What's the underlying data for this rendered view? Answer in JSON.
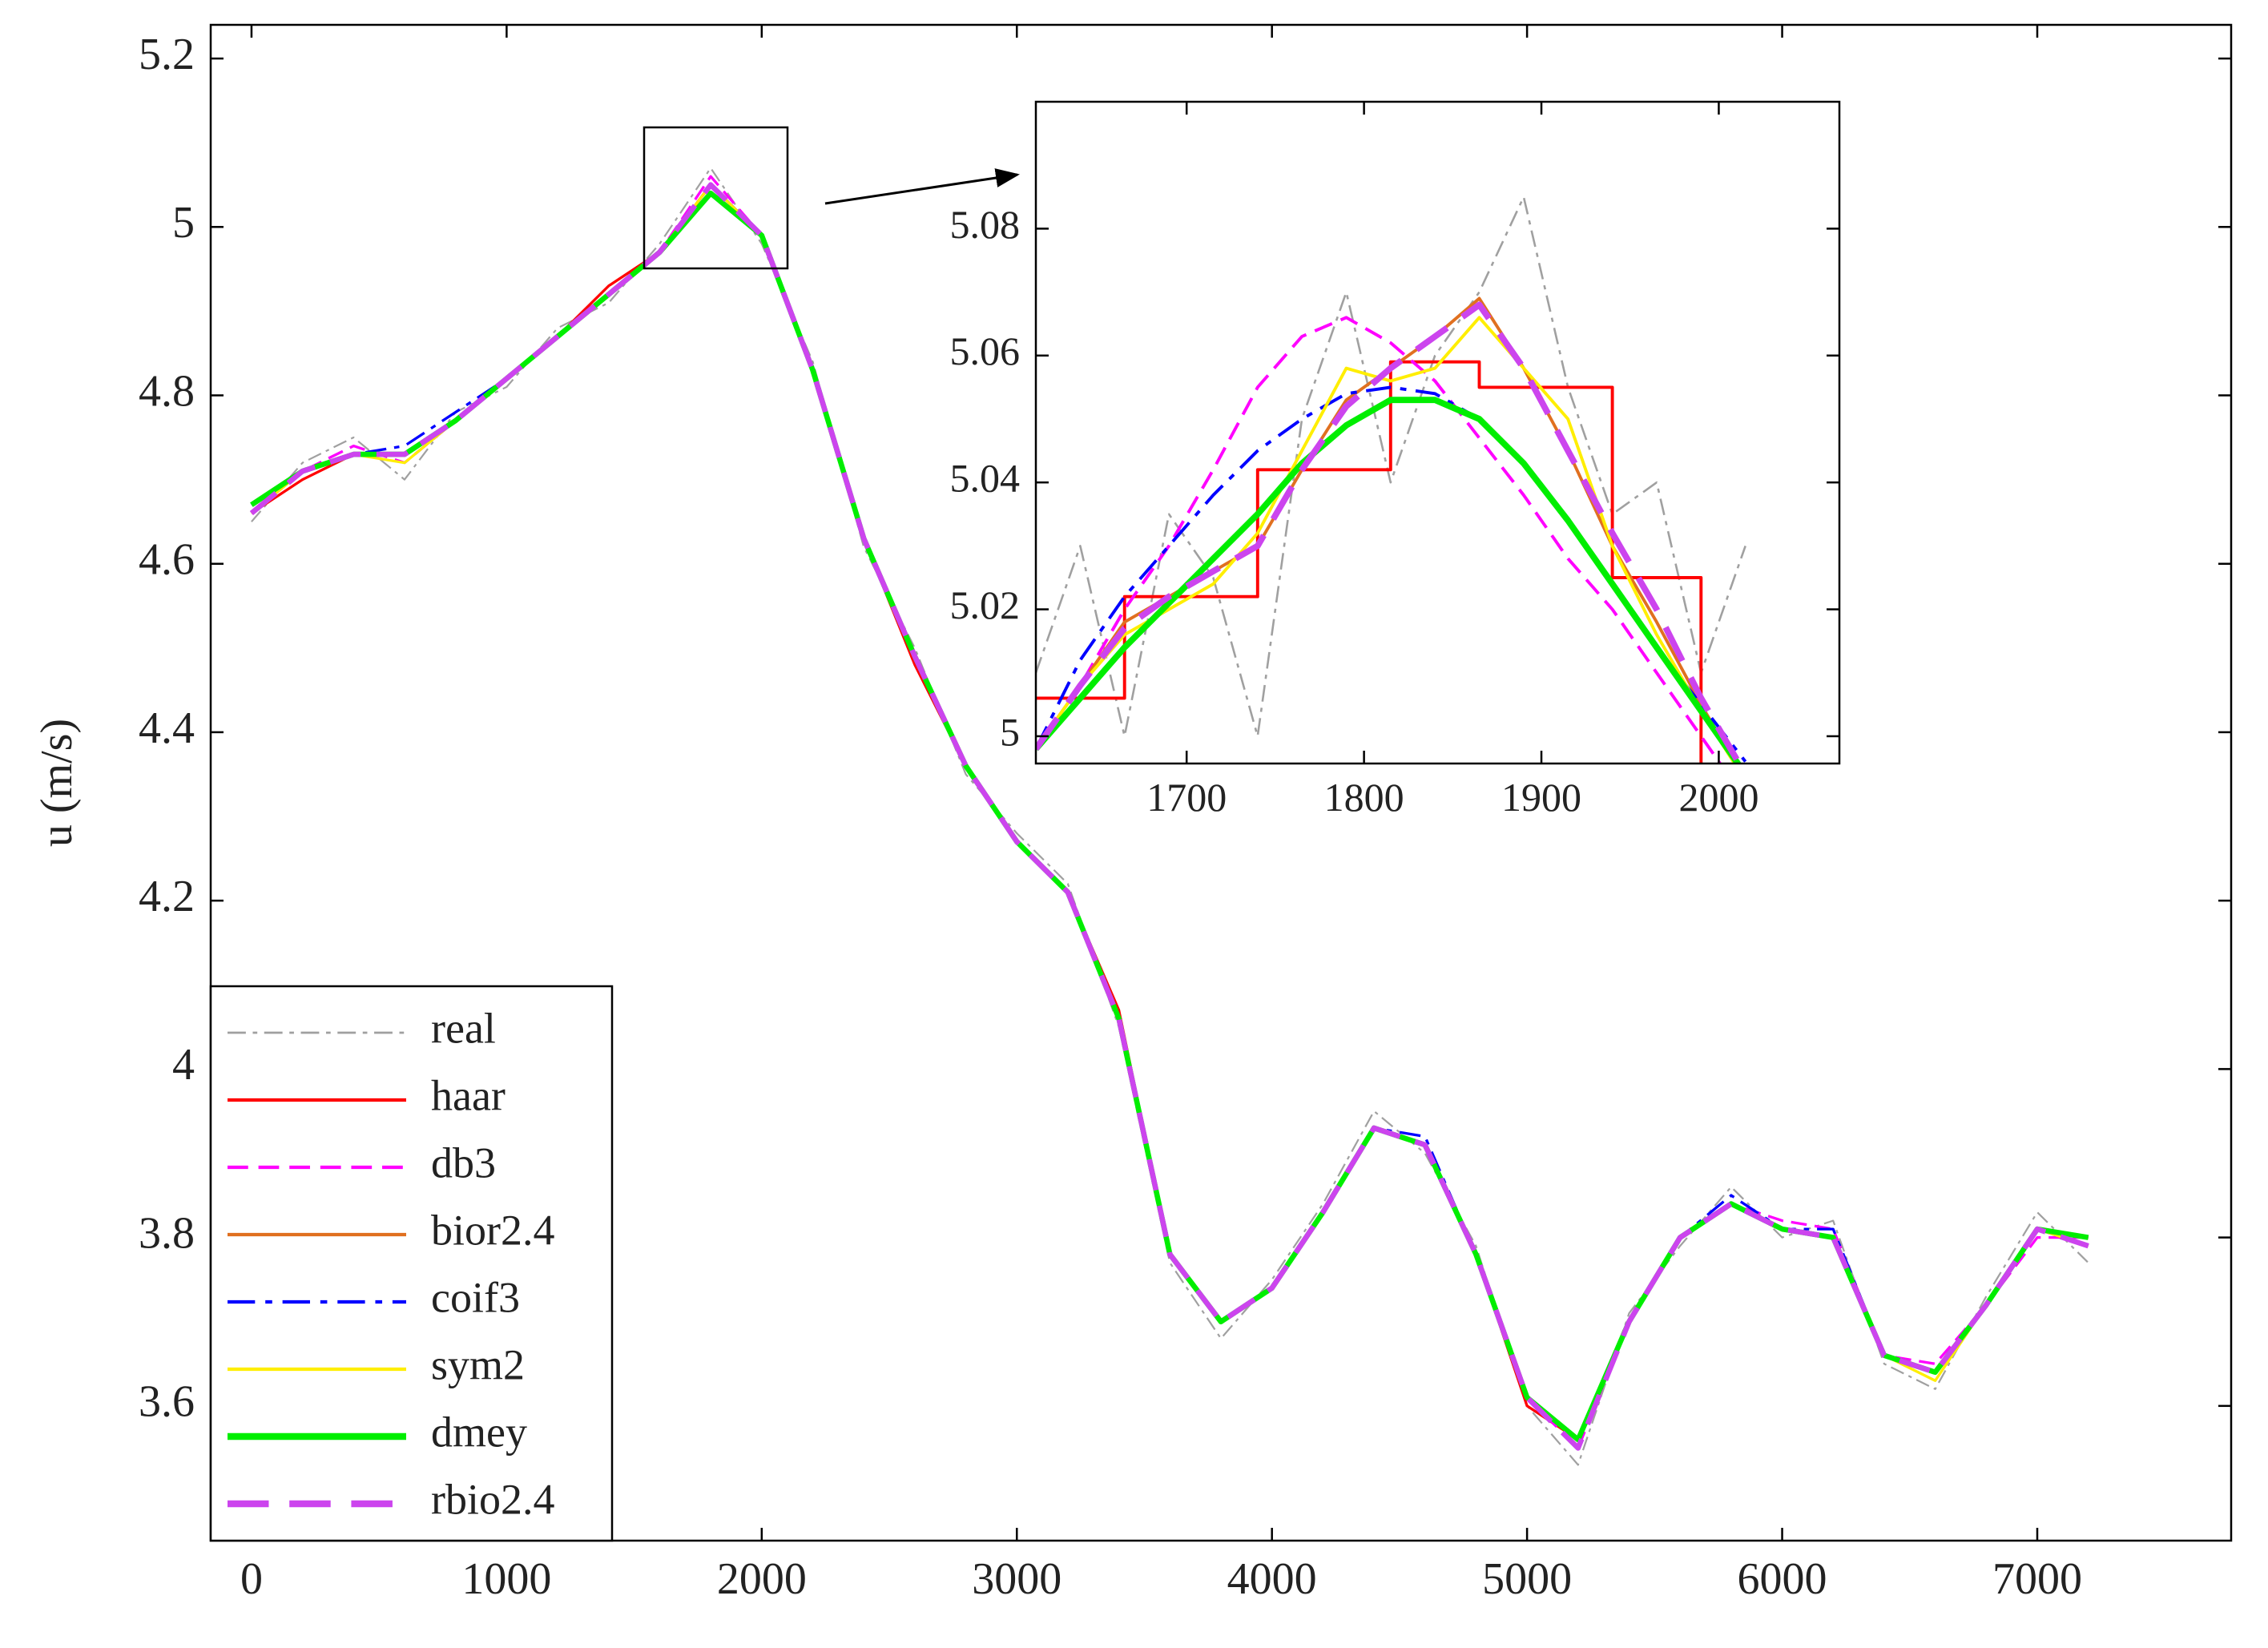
{
  "chart_data": [
    {
      "type": "line",
      "ylabel": "u (m/s)",
      "x": [
        0,
        200,
        400,
        600,
        800,
        1000,
        1200,
        1400,
        1600,
        1800,
        2000,
        2200,
        2400,
        2600,
        2800,
        3000,
        3200,
        3400,
        3600,
        3800,
        4000,
        4200,
        4400,
        4600,
        4800,
        5000,
        5200,
        5400,
        5600,
        5800,
        6000,
        6200,
        6400,
        6600,
        6800,
        7000,
        7200
      ],
      "xlim": [
        -160,
        7760
      ],
      "xticks": [
        0,
        1000,
        2000,
        3000,
        4000,
        5000,
        6000,
        7000
      ],
      "ylim": [
        3.44,
        5.24
      ],
      "yticks": [
        3.6,
        3.8,
        4,
        4.2,
        4.4,
        4.6,
        4.8,
        5,
        5.2
      ],
      "legend": "lower left",
      "series": [
        {
          "name": "real",
          "color": "#a0a0a0",
          "linestyle": "-.",
          "linewidth": 1,
          "values": [
            4.65,
            4.72,
            4.75,
            4.7,
            4.78,
            4.81,
            4.88,
            4.91,
            4.98,
            5.07,
            4.98,
            4.84,
            4.62,
            4.5,
            4.35,
            4.28,
            4.22,
            4.05,
            3.77,
            3.68,
            3.75,
            3.84,
            3.95,
            3.9,
            3.79,
            3.6,
            3.53,
            3.71,
            3.79,
            3.86,
            3.8,
            3.82,
            3.65,
            3.62,
            3.73,
            3.83,
            3.77
          ]
        },
        {
          "name": "haar",
          "color": "#ff0000",
          "linestyle": "-",
          "linewidth": 1.5,
          "values": [
            4.66,
            4.7,
            4.73,
            4.73,
            4.77,
            4.82,
            4.87,
            4.93,
            4.97,
            5.05,
            4.99,
            4.83,
            4.63,
            4.48,
            4.36,
            4.27,
            4.21,
            4.07,
            3.78,
            3.7,
            3.74,
            3.83,
            3.93,
            3.91,
            3.78,
            3.6,
            3.56,
            3.7,
            3.8,
            3.84,
            3.81,
            3.8,
            3.66,
            3.64,
            3.72,
            3.81,
            3.8
          ]
        },
        {
          "name": "db3",
          "color": "#ff00ff",
          "linestyle": "--",
          "linewidth": 1.5,
          "values": [
            4.66,
            4.71,
            4.74,
            4.72,
            4.77,
            4.82,
            4.87,
            4.92,
            4.97,
            5.06,
            4.99,
            4.83,
            4.63,
            4.49,
            4.36,
            4.27,
            4.21,
            4.06,
            3.78,
            3.7,
            3.74,
            3.83,
            3.93,
            3.91,
            3.78,
            3.61,
            3.55,
            3.7,
            3.8,
            3.84,
            3.82,
            3.81,
            3.66,
            3.65,
            3.72,
            3.8,
            3.8
          ]
        },
        {
          "name": "bior2.4",
          "color": "#e07020",
          "linestyle": "-",
          "linewidth": 1.5,
          "values": [
            4.66,
            4.71,
            4.73,
            4.73,
            4.77,
            4.82,
            4.87,
            4.92,
            4.97,
            5.05,
            4.99,
            4.83,
            4.63,
            4.49,
            4.36,
            4.27,
            4.21,
            4.06,
            3.78,
            3.7,
            3.74,
            3.83,
            3.93,
            3.91,
            3.78,
            3.61,
            3.56,
            3.7,
            3.8,
            3.84,
            3.81,
            3.8,
            3.66,
            3.64,
            3.72,
            3.81,
            3.79
          ]
        },
        {
          "name": "coif3",
          "color": "#0000ff",
          "linestyle": "-.",
          "linewidth": 1.5,
          "values": [
            4.67,
            4.71,
            4.73,
            4.74,
            4.78,
            4.82,
            4.87,
            4.92,
            4.97,
            5.05,
            4.99,
            4.83,
            4.63,
            4.49,
            4.36,
            4.27,
            4.21,
            4.06,
            3.78,
            3.7,
            3.74,
            3.83,
            3.93,
            3.92,
            3.78,
            3.61,
            3.56,
            3.7,
            3.8,
            3.85,
            3.81,
            3.81,
            3.66,
            3.64,
            3.72,
            3.81,
            3.79
          ]
        },
        {
          "name": "sym2",
          "color": "#ffee00",
          "linestyle": "-",
          "linewidth": 1.5,
          "values": [
            4.66,
            4.71,
            4.73,
            4.72,
            4.77,
            4.82,
            4.87,
            4.92,
            4.97,
            5.05,
            4.99,
            4.83,
            4.63,
            4.49,
            4.36,
            4.27,
            4.21,
            4.06,
            3.78,
            3.7,
            3.74,
            3.83,
            3.93,
            3.91,
            3.78,
            3.61,
            3.56,
            3.7,
            3.8,
            3.84,
            3.81,
            3.8,
            3.66,
            3.63,
            3.72,
            3.81,
            3.79
          ]
        },
        {
          "name": "dmey",
          "color": "#00ee00",
          "linestyle": "-",
          "linewidth": 3,
          "values": [
            4.67,
            4.71,
            4.73,
            4.73,
            4.77,
            4.82,
            4.87,
            4.92,
            4.97,
            5.04,
            4.99,
            4.83,
            4.63,
            4.49,
            4.36,
            4.27,
            4.21,
            4.06,
            3.78,
            3.7,
            3.74,
            3.83,
            3.93,
            3.91,
            3.78,
            3.61,
            3.56,
            3.7,
            3.8,
            3.84,
            3.81,
            3.8,
            3.66,
            3.64,
            3.72,
            3.81,
            3.8
          ]
        },
        {
          "name": "rbio2.4",
          "color": "#cc44ee",
          "linestyle": "--",
          "linewidth": 3,
          "values": [
            4.66,
            4.71,
            4.73,
            4.73,
            4.77,
            4.82,
            4.87,
            4.92,
            4.97,
            5.05,
            4.99,
            4.83,
            4.63,
            4.49,
            4.36,
            4.27,
            4.21,
            4.06,
            3.78,
            3.7,
            3.74,
            3.83,
            3.93,
            3.91,
            3.78,
            3.61,
            3.55,
            3.7,
            3.8,
            3.84,
            3.81,
            3.8,
            3.66,
            3.64,
            3.72,
            3.81,
            3.79
          ]
        }
      ]
    },
    {
      "type": "line",
      "x": [
        1615,
        1640,
        1665,
        1690,
        1715,
        1740,
        1765,
        1790,
        1815,
        1840,
        1865,
        1890,
        1915,
        1940,
        1965,
        1990,
        2015
      ],
      "xlim": [
        1615,
        2068
      ],
      "xticks": [
        1700,
        1800,
        1900,
        2000
      ],
      "ylim": [
        4.9957,
        5.1
      ],
      "yticks": [
        5,
        5.02,
        5.04,
        5.06,
        5.08
      ],
      "series": [
        {
          "name": "real",
          "color": "#a0a0a0",
          "linestyle": "-.",
          "linewidth": 1,
          "values": [
            5.01,
            5.03,
            5.0,
            5.035,
            5.025,
            5.0,
            5.05,
            5.07,
            5.04,
            5.06,
            5.07,
            5.085,
            5.055,
            5.035,
            5.04,
            5.01,
            5.03
          ]
        },
        {
          "name": "haar",
          "color": "#ff0000",
          "linestyle": "steps",
          "linewidth": 1.5,
          "values": [
            5.006,
            5.006,
            5.022,
            5.022,
            5.022,
            5.042,
            5.042,
            5.042,
            5.059,
            5.059,
            5.055,
            5.055,
            5.055,
            5.025,
            5.025,
            4.99,
            4.99
          ]
        },
        {
          "name": "db3",
          "color": "#ff00ff",
          "linestyle": "--",
          "linewidth": 1.5,
          "values": [
            4.998,
            5.008,
            5.02,
            5.03,
            5.042,
            5.055,
            5.063,
            5.066,
            5.062,
            5.056,
            5.047,
            5.038,
            5.028,
            5.02,
            5.01,
            5.0,
            4.99
          ]
        },
        {
          "name": "bior2.4",
          "color": "#e07020",
          "linestyle": "-",
          "linewidth": 1.5,
          "values": [
            4.998,
            5.008,
            5.018,
            5.022,
            5.026,
            5.03,
            5.042,
            5.053,
            5.058,
            5.063,
            5.069,
            5.058,
            5.045,
            5.03,
            5.018,
            5.005,
            4.993
          ]
        },
        {
          "name": "coif3",
          "color": "#0000ff",
          "linestyle": "-.",
          "linewidth": 1.5,
          "values": [
            4.998,
            5.012,
            5.022,
            5.03,
            5.038,
            5.045,
            5.05,
            5.054,
            5.055,
            5.054,
            5.05,
            5.043,
            5.034,
            5.024,
            5.014,
            5.005,
            4.996
          ]
        },
        {
          "name": "sym2",
          "color": "#ffee00",
          "linestyle": "-",
          "linewidth": 1.5,
          "values": [
            4.998,
            5.008,
            5.016,
            5.02,
            5.024,
            5.032,
            5.045,
            5.058,
            5.056,
            5.058,
            5.066,
            5.058,
            5.05,
            5.03,
            5.016,
            5.004,
            4.993
          ]
        },
        {
          "name": "dmey",
          "color": "#00ee00",
          "linestyle": "-",
          "linewidth": 3,
          "values": [
            4.998,
            5.006,
            5.014,
            5.021,
            5.028,
            5.035,
            5.043,
            5.049,
            5.053,
            5.053,
            5.05,
            5.043,
            5.034,
            5.024,
            5.014,
            5.004,
            4.994
          ]
        },
        {
          "name": "rbio2.4",
          "color": "#cc44ee",
          "linestyle": "--",
          "linewidth": 3,
          "values": [
            4.998,
            5.008,
            5.017,
            5.022,
            5.026,
            5.03,
            5.042,
            5.052,
            5.058,
            5.063,
            5.068,
            5.058,
            5.045,
            5.032,
            5.02,
            5.006,
            4.994
          ]
        }
      ]
    }
  ]
}
